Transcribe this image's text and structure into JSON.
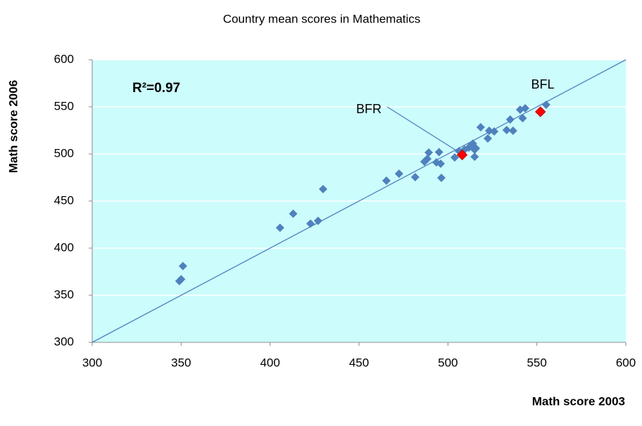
{
  "chart_data": {
    "type": "scatter",
    "title": "Country mean scores in Mathematics",
    "x_label": "Math score 2003",
    "y_label": "Math score 2006",
    "annotations": [
      "R²=0.97",
      "BFR",
      "BFL"
    ],
    "xlim": [
      300,
      600
    ],
    "ylim": [
      300,
      600
    ],
    "xticks": [
      300,
      350,
      400,
      450,
      500,
      550,
      600
    ],
    "yticks": [
      300,
      350,
      400,
      450,
      500,
      550,
      600
    ],
    "grid": true,
    "background": "#ccfcfc",
    "line_color": "#4f81bd",
    "series": [
      {
        "color": "#4f81bd",
        "x": [
          349,
          350,
          351,
          405.6,
          413,
          422.7,
          427,
          429.8,
          465.4,
          472.5,
          481.6,
          486.8,
          488.4,
          489.2,
          493.5,
          495,
          495.9,
          496.3,
          503.8,
          506.2,
          508,
          509.3,
          511.7,
          514,
          515,
          515.7,
          515,
          518.4,
          522.4,
          523.2,
          526,
          533,
          535,
          536.6,
          540.6,
          542,
          543.4,
          555.2
        ],
        "values": [
          365,
          367,
          381,
          421.6,
          436.6,
          426,
          429,
          462.7,
          471.6,
          479,
          475.4,
          491.8,
          494.8,
          501.5,
          491,
          502,
          489.6,
          474.6,
          496.3,
          503,
          500,
          504.5,
          506.7,
          511,
          504.5,
          506,
          497,
          528.4,
          516.4,
          524.6,
          523.9,
          525.4,
          536.6,
          524.6,
          547,
          538,
          548.5,
          552.2
        ]
      },
      {
        "color": "#ff0000",
        "x": [
          508,
          552
        ],
        "values": [
          499,
          544.8
        ]
      }
    ]
  }
}
